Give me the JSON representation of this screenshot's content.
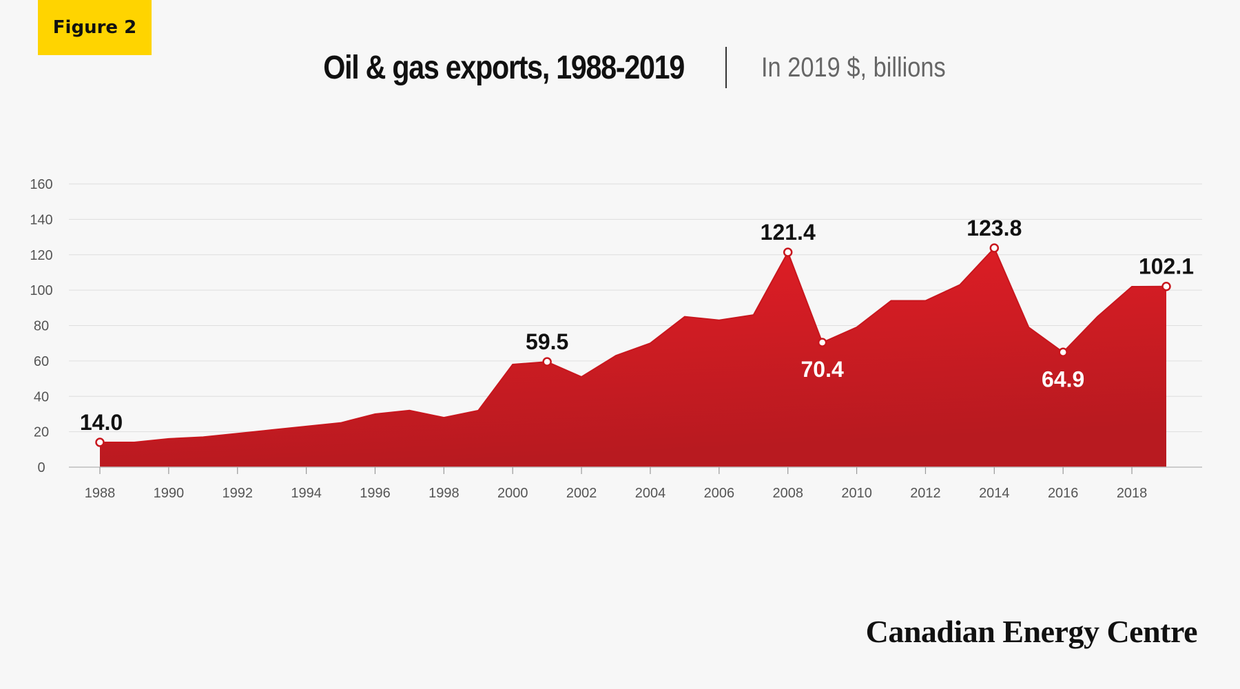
{
  "badge": "Figure 2",
  "title": "Oil & gas exports, 1988-2019",
  "subtitle": "In 2019 $, billions",
  "brand": "Canadian Energy Centre",
  "colors": {
    "accent_fill": "#d71920",
    "badge": "#ffd400"
  },
  "chart_data": {
    "type": "area",
    "x": [
      1988,
      1989,
      1990,
      1991,
      1992,
      1993,
      1994,
      1995,
      1996,
      1997,
      1998,
      1999,
      2000,
      2001,
      2002,
      2003,
      2004,
      2005,
      2006,
      2007,
      2008,
      2009,
      2010,
      2011,
      2012,
      2013,
      2014,
      2015,
      2016,
      2017,
      2018,
      2019
    ],
    "values": [
      14.0,
      14.0,
      16,
      17,
      19,
      21,
      23,
      25,
      30,
      32,
      28,
      32,
      58,
      59.5,
      51,
      63,
      70,
      85,
      83,
      86,
      121.4,
      70.4,
      79,
      94,
      94,
      103,
      123.8,
      79,
      64.9,
      85,
      102,
      102.1
    ],
    "xticks": [
      "1988",
      "1990",
      "1992",
      "1994",
      "1996",
      "1998",
      "2000",
      "2002",
      "2004",
      "2006",
      "2008",
      "2010",
      "2012",
      "2014",
      "2016",
      "2018"
    ],
    "yticks": [
      "0",
      "20",
      "40",
      "60",
      "80",
      "100",
      "120",
      "140",
      "160"
    ],
    "ylim": [
      0,
      160
    ],
    "grid": true,
    "annotations": [
      {
        "x": 1988,
        "y": 14.0,
        "label": "14.0",
        "pos": "above"
      },
      {
        "x": 2001,
        "y": 59.5,
        "label": "59.5",
        "pos": "above"
      },
      {
        "x": 2008,
        "y": 121.4,
        "label": "121.4",
        "pos": "above"
      },
      {
        "x": 2009,
        "y": 70.4,
        "label": "70.4",
        "pos": "below"
      },
      {
        "x": 2014,
        "y": 123.8,
        "label": "123.8",
        "pos": "above"
      },
      {
        "x": 2016,
        "y": 64.9,
        "label": "64.9",
        "pos": "below"
      },
      {
        "x": 2019,
        "y": 102.1,
        "label": "102.1",
        "pos": "above"
      }
    ]
  }
}
